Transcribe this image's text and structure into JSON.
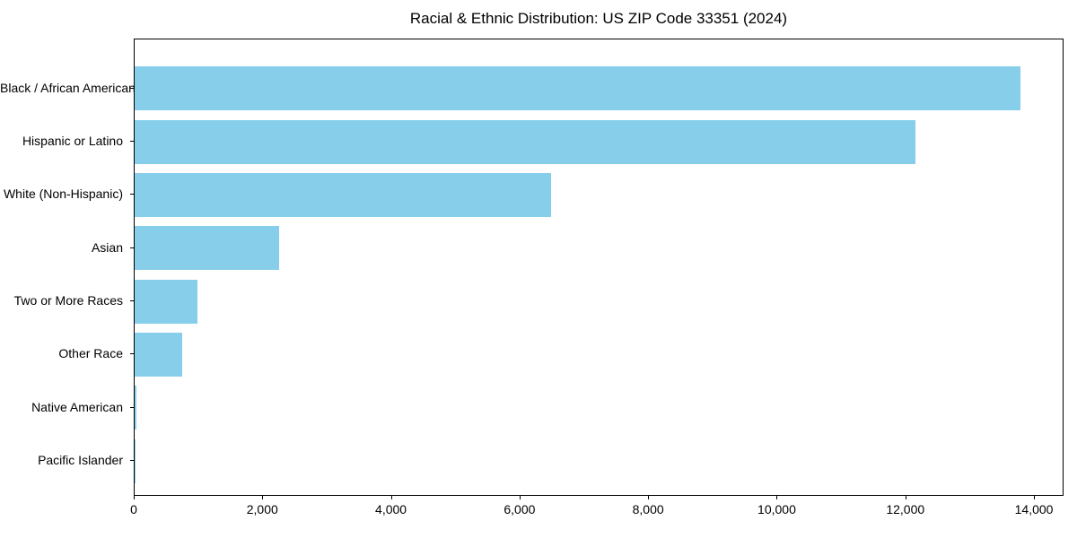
{
  "chart_data": {
    "type": "bar",
    "orientation": "horizontal",
    "title": "Racial & Ethnic Distribution: US ZIP Code 33351 (2024)",
    "categories": [
      "Black / African American",
      "Hispanic or Latino",
      "White (Non-Hispanic)",
      "Asian",
      "Two or More Races",
      "Other Race",
      "Native American",
      "Pacific Islander"
    ],
    "values": [
      13770,
      12140,
      6470,
      2250,
      980,
      735,
      25,
      8
    ],
    "xlabel": "",
    "ylabel": "",
    "xlim": [
      0,
      14460
    ],
    "xticks": [
      0,
      2000,
      4000,
      6000,
      8000,
      10000,
      12000,
      14000
    ],
    "xtick_labels": [
      "0",
      "2,000",
      "4,000",
      "6,000",
      "8,000",
      "10,000",
      "12,000",
      "14,000"
    ],
    "bar_color": "#87CEEB",
    "axis_color": "#000000",
    "text_color": "#000000",
    "background_color": "#FFFFFF",
    "grid": false,
    "legend": null
  }
}
